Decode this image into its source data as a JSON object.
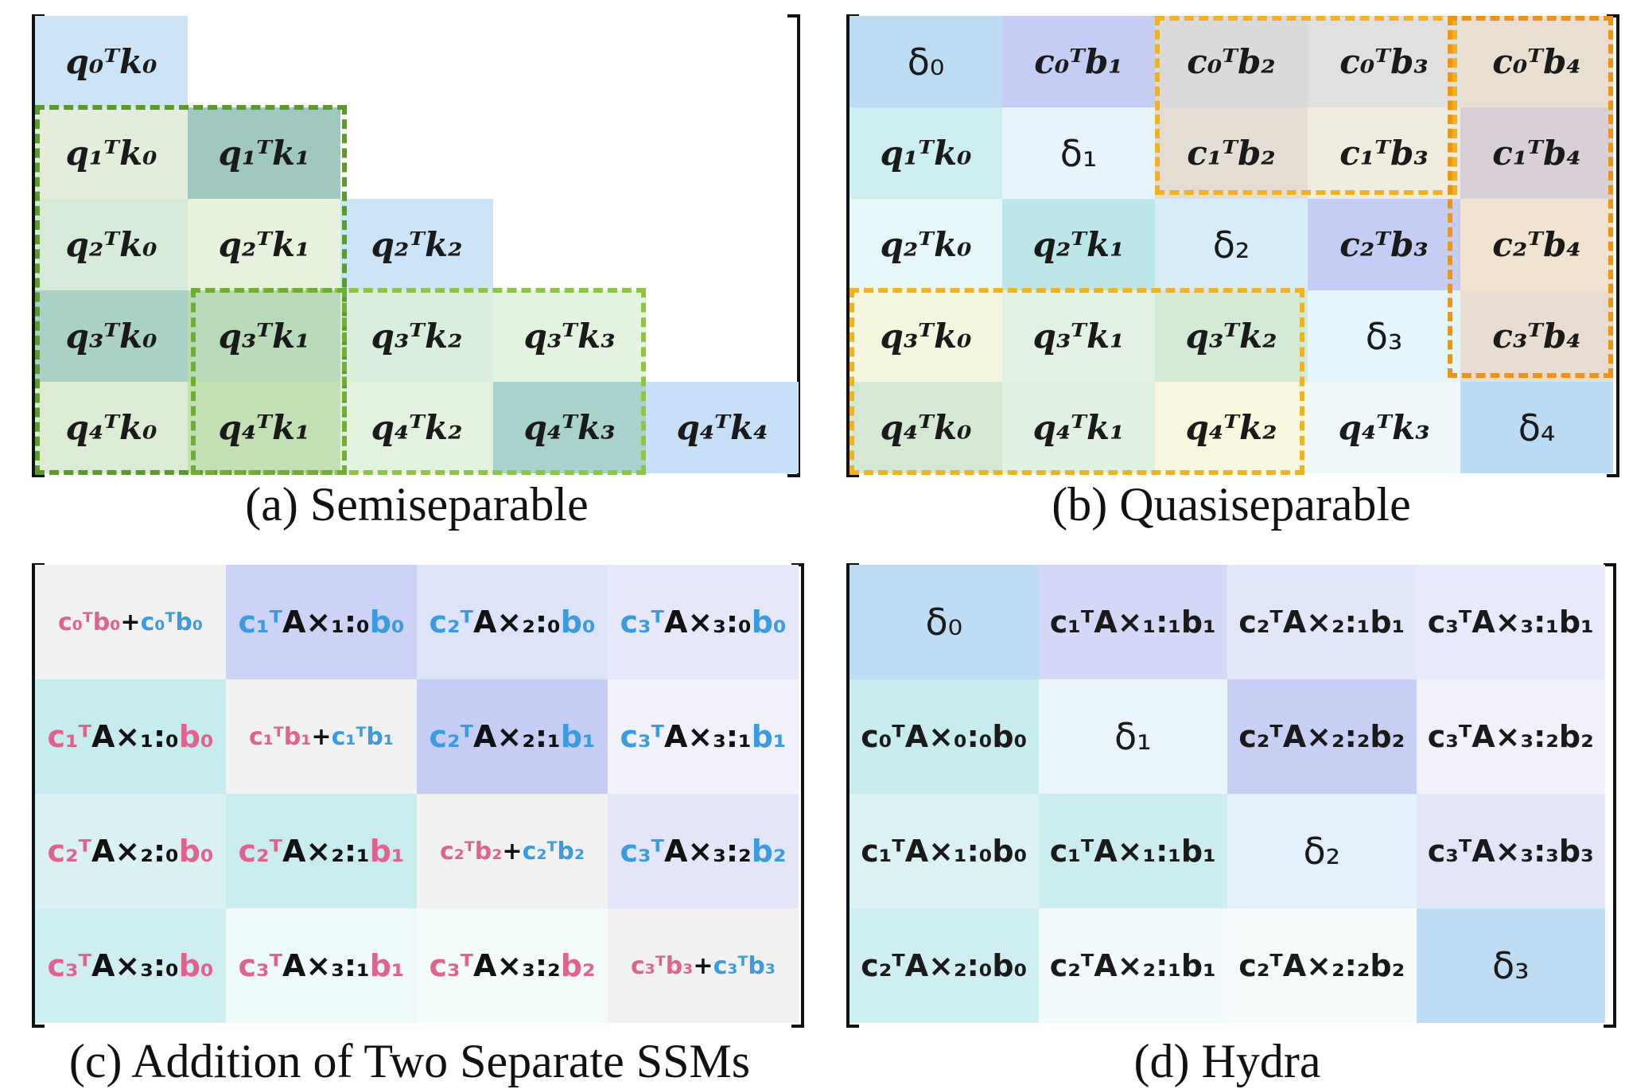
{
  "panel_a": {
    "caption": "(a) Semiseparable",
    "cells": [
      {
        "r": 0,
        "c": 0,
        "text": "q₀ᵀk₀",
        "bg": "#cce4f7"
      },
      {
        "r": 1,
        "c": 0,
        "text": "q₁ᵀk₀",
        "bg": "#e2eedb"
      },
      {
        "r": 1,
        "c": 1,
        "text": "q₁ᵀk₁",
        "bg": "#9fc9be"
      },
      {
        "r": 2,
        "c": 0,
        "text": "q₂ᵀk₀",
        "bg": "#d5ead8"
      },
      {
        "r": 2,
        "c": 1,
        "text": "q₂ᵀk₁",
        "bg": "#e6f2dc"
      },
      {
        "r": 2,
        "c": 2,
        "text": "q₂ᵀk₂",
        "bg": "#cce4f7"
      },
      {
        "r": 3,
        "c": 0,
        "text": "q₃ᵀk₀",
        "bg": "#a9d1c5"
      },
      {
        "r": 3,
        "c": 1,
        "text": "q₃ᵀk₁",
        "bg": "#b7dab8"
      },
      {
        "r": 3,
        "c": 2,
        "text": "q₃ᵀk₂",
        "bg": "#d9eedd"
      },
      {
        "r": 3,
        "c": 3,
        "text": "q₃ᵀk₃",
        "bg": "#e3f3df"
      },
      {
        "r": 4,
        "c": 0,
        "text": "q₄ᵀk₀",
        "bg": "#dcebd3"
      },
      {
        "r": 4,
        "c": 1,
        "text": "q₄ᵀk₁",
        "bg": "#c3e0b4"
      },
      {
        "r": 4,
        "c": 2,
        "text": "q₄ᵀk₂",
        "bg": "#e2f2df"
      },
      {
        "r": 4,
        "c": 3,
        "text": "q₄ᵀk₃",
        "bg": "#a8d3cc"
      },
      {
        "r": 4,
        "c": 4,
        "text": "q₄ᵀk₄",
        "bg": "#c6e0f7"
      }
    ]
  },
  "panel_b": {
    "caption": "(b) Quasiseparable",
    "cells": [
      {
        "r": 0,
        "c": 0,
        "text": "δ₀",
        "bg": "#bcdcf4",
        "delta": true
      },
      {
        "r": 0,
        "c": 1,
        "text": "c₀ᵀb₁",
        "bg": "#c5cdf5"
      },
      {
        "r": 0,
        "c": 2,
        "text": "c₀ᵀb₂",
        "bg": "#dadbd8"
      },
      {
        "r": 0,
        "c": 3,
        "text": "c₀ᵀb₃",
        "bg": "#e0e0df"
      },
      {
        "r": 0,
        "c": 4,
        "text": "c₀ᵀb₄",
        "bg": "#e9dfd1"
      },
      {
        "r": 1,
        "c": 0,
        "text": "q₁ᵀk₀",
        "bg": "#cdeef1"
      },
      {
        "r": 1,
        "c": 1,
        "text": "δ₁",
        "bg": "#e7f4fb",
        "delta": true
      },
      {
        "r": 1,
        "c": 2,
        "text": "c₁ᵀb₂",
        "bg": "#e3ddd3"
      },
      {
        "r": 1,
        "c": 3,
        "text": "c₁ᵀb₃",
        "bg": "#efebdf"
      },
      {
        "r": 1,
        "c": 4,
        "text": "c₁ᵀb₄",
        "bg": "#d9cfd6"
      },
      {
        "r": 2,
        "c": 0,
        "text": "q₂ᵀk₀",
        "bg": "#e6f7f9"
      },
      {
        "r": 2,
        "c": 1,
        "text": "q₂ᵀk₁",
        "bg": "#bde6ea"
      },
      {
        "r": 2,
        "c": 2,
        "text": "δ₂",
        "bg": "#d7ecf9",
        "delta": true
      },
      {
        "r": 2,
        "c": 3,
        "text": "c₂ᵀb₃",
        "bg": "#c6cdf4"
      },
      {
        "r": 2,
        "c": 4,
        "text": "c₂ᵀb₄",
        "bg": "#f1e3cf"
      },
      {
        "r": 3,
        "c": 0,
        "text": "q₃ᵀk₀",
        "bg": "#f5f6e0"
      },
      {
        "r": 3,
        "c": 1,
        "text": "q₃ᵀk₁",
        "bg": "#e2f1e3"
      },
      {
        "r": 3,
        "c": 2,
        "text": "q₃ᵀk₂",
        "bg": "#d3ead7"
      },
      {
        "r": 3,
        "c": 3,
        "text": "δ₃",
        "bg": "#e4f5fb",
        "delta": true
      },
      {
        "r": 3,
        "c": 4,
        "text": "c₃ᵀb₄",
        "bg": "#e9ddd2"
      },
      {
        "r": 4,
        "c": 0,
        "text": "q₄ᵀk₀",
        "bg": "#d5e8d3"
      },
      {
        "r": 4,
        "c": 1,
        "text": "q₄ᵀk₁",
        "bg": "#e0f1e2"
      },
      {
        "r": 4,
        "c": 2,
        "text": "q₄ᵀk₂",
        "bg": "#f8f6dc"
      },
      {
        "r": 4,
        "c": 3,
        "text": "q₄ᵀk₃",
        "bg": "#eef8fb"
      },
      {
        "r": 4,
        "c": 4,
        "text": "δ₄",
        "bg": "#bbdaf3",
        "delta": true
      }
    ]
  },
  "panel_c": {
    "caption": "(c) Addition of Two Separate SSMs",
    "cells": [
      {
        "r": 0,
        "c": 0,
        "kind": "sum",
        "a": "c₀ᵀb₀",
        "b": "c₀ᵀb₀",
        "bg": "#f1f1f1"
      },
      {
        "r": 0,
        "c": 1,
        "kind": "term",
        "color": "blue",
        "c_sym": "c₁ᵀ",
        "A": "A×₁:₀",
        "b_sym": "b₀",
        "bg": "#ccd3f6"
      },
      {
        "r": 0,
        "c": 2,
        "kind": "term",
        "color": "blue",
        "c_sym": "c₂ᵀ",
        "A": "A×₂:₀",
        "b_sym": "b₀",
        "bg": "#dde3f8"
      },
      {
        "r": 0,
        "c": 3,
        "kind": "term",
        "color": "blue",
        "c_sym": "c₃ᵀ",
        "A": "A×₃:₀",
        "b_sym": "b₀",
        "bg": "#e6e8fa"
      },
      {
        "r": 1,
        "c": 0,
        "kind": "term",
        "color": "pink",
        "c_sym": "c₁ᵀ",
        "A": "A×₁:₀",
        "b_sym": "b₀",
        "bg": "#c6ecef"
      },
      {
        "r": 1,
        "c": 1,
        "kind": "sum",
        "a": "c₁ᵀb₁",
        "b": "c₁ᵀb₁",
        "bg": "#f1f1f1"
      },
      {
        "r": 1,
        "c": 2,
        "kind": "term",
        "color": "blue",
        "c_sym": "c₂ᵀ",
        "A": "A×₂:₁",
        "b_sym": "b₁",
        "bg": "#c6cdf5"
      },
      {
        "r": 1,
        "c": 3,
        "kind": "term",
        "color": "blue",
        "c_sym": "c₃ᵀ",
        "A": "A×₃:₁",
        "b_sym": "b₁",
        "bg": "#f0f1fb"
      },
      {
        "r": 2,
        "c": 0,
        "kind": "term",
        "color": "pink",
        "c_sym": "c₂ᵀ",
        "A": "A×₂:₀",
        "b_sym": "b₀",
        "bg": "#daf1f3"
      },
      {
        "r": 2,
        "c": 1,
        "kind": "term",
        "color": "pink",
        "c_sym": "c₂ᵀ",
        "A": "A×₂:₁",
        "b_sym": "b₁",
        "bg": "#c9ecee"
      },
      {
        "r": 2,
        "c": 2,
        "kind": "sum",
        "a": "c₂ᵀb₂",
        "b": "c₂ᵀb₂",
        "bg": "#f1f1f1"
      },
      {
        "r": 2,
        "c": 3,
        "kind": "term",
        "color": "blue",
        "c_sym": "c₃ᵀ",
        "A": "A×₃:₂",
        "b_sym": "b₂",
        "bg": "#e3e6f9"
      },
      {
        "r": 3,
        "c": 0,
        "kind": "term",
        "color": "pink",
        "c_sym": "c₃ᵀ",
        "A": "A×₃:₀",
        "b_sym": "b₀",
        "bg": "#cfeef1"
      },
      {
        "r": 3,
        "c": 1,
        "kind": "term",
        "color": "pink",
        "c_sym": "c₃ᵀ",
        "A": "A×₃:₁",
        "b_sym": "b₁",
        "bg": "#eef9fa"
      },
      {
        "r": 3,
        "c": 2,
        "kind": "term",
        "color": "pink",
        "c_sym": "c₃ᵀ",
        "A": "A×₃:₂",
        "b_sym": "b₂",
        "bg": "#f3fbfb"
      },
      {
        "r": 3,
        "c": 3,
        "kind": "sum",
        "a": "c₃ᵀb₃",
        "b": "c₃ᵀb₃",
        "bg": "#f1f1f1"
      }
    ]
  },
  "panel_d": {
    "caption": "(d) Hydra",
    "cells": [
      {
        "r": 0,
        "c": 0,
        "text": "δ₀",
        "bg": "#bedcf4",
        "delta": true
      },
      {
        "r": 0,
        "c": 1,
        "text": "c₁ᵀA×₁:₁b₁",
        "bg": "#d3d8f7"
      },
      {
        "r": 0,
        "c": 2,
        "text": "c₂ᵀA×₂:₁b₁",
        "bg": "#e2e6f9"
      },
      {
        "r": 0,
        "c": 3,
        "text": "c₃ᵀA×₃:₁b₁",
        "bg": "#e8eafb"
      },
      {
        "r": 1,
        "c": 0,
        "text": "c₀ᵀA×₀:₀b₀",
        "bg": "#c8ecee"
      },
      {
        "r": 1,
        "c": 1,
        "text": "δ₁",
        "bg": "#e9f4fb",
        "delta": true
      },
      {
        "r": 1,
        "c": 2,
        "text": "c₂ᵀA×₂:₂b₂",
        "bg": "#c8cff5"
      },
      {
        "r": 1,
        "c": 3,
        "text": "c₃ᵀA×₃:₂b₂",
        "bg": "#f0f1fb"
      },
      {
        "r": 2,
        "c": 0,
        "text": "c₁ᵀA×₁:₀b₀",
        "bg": "#dbf2f4"
      },
      {
        "r": 2,
        "c": 1,
        "text": "c₁ᵀA×₁:₁b₁",
        "bg": "#cbedef"
      },
      {
        "r": 2,
        "c": 2,
        "text": "δ₂",
        "bg": "#e3f0fb",
        "delta": true
      },
      {
        "r": 2,
        "c": 3,
        "text": "c₃ᵀA×₃:₃b₃",
        "bg": "#e3e6f9"
      },
      {
        "r": 3,
        "c": 0,
        "text": "c₂ᵀA×₂:₀b₀",
        "bg": "#cfeef1"
      },
      {
        "r": 3,
        "c": 1,
        "text": "c₂ᵀA×₂:₁b₁",
        "bg": "#f2fafb"
      },
      {
        "r": 3,
        "c": 2,
        "text": "c₂ᵀA×₂:₂b₂",
        "bg": "#f6fbfc"
      },
      {
        "r": 3,
        "c": 3,
        "text": "δ₃",
        "bg": "#bedcf4",
        "delta": true
      }
    ]
  },
  "colors": {
    "dash_dark_green": "#5a9a2a",
    "dash_light_green": "#8cc63f",
    "dash_orange_light": "#f2b21e",
    "dash_orange_dark": "#ec9414",
    "forward_pink": "#e0628f",
    "backward_blue": "#3a9be0"
  }
}
